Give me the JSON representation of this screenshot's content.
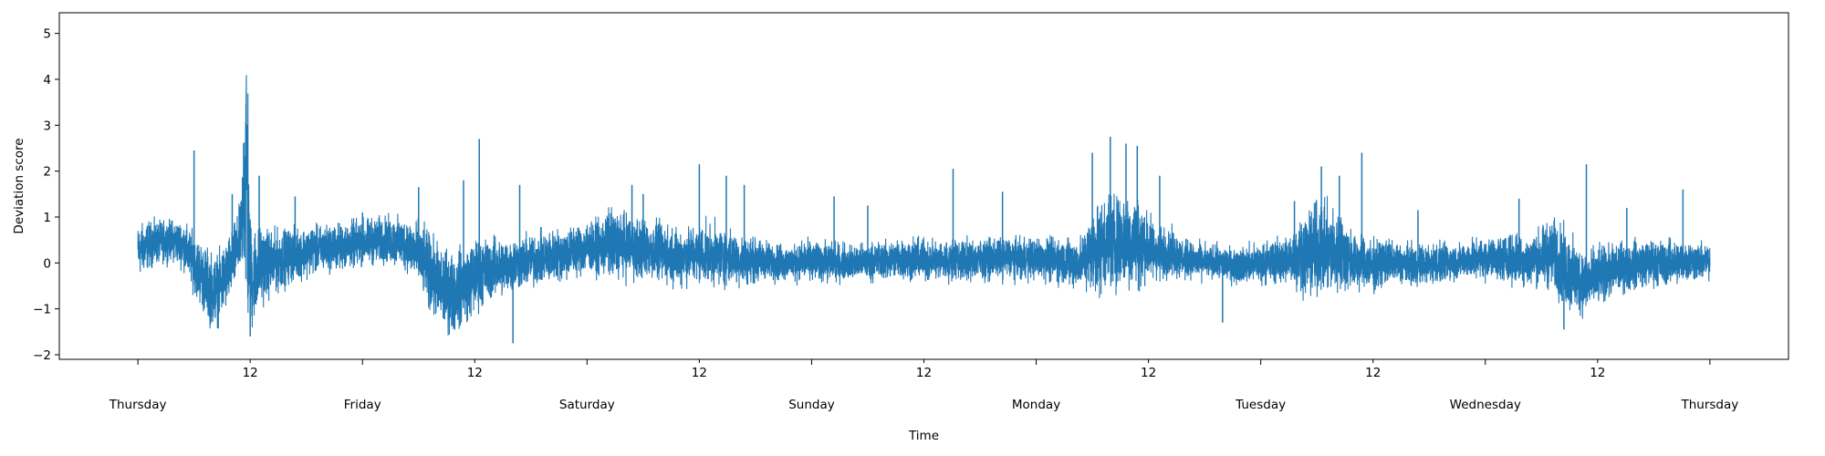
{
  "chart_data": {
    "type": "line",
    "title": "",
    "xlabel": "Time",
    "ylabel": "Deviation score",
    "xlim": [
      -0.35,
      7.35
    ],
    "ylim": [
      -2.1,
      5.45
    ],
    "grid": false,
    "legend": "none",
    "colors": {
      "line": "#1f77b4",
      "axis": "#000000",
      "background": "#ffffff"
    },
    "y_ticks": [
      {
        "value": -2,
        "label": "−2"
      },
      {
        "value": -1,
        "label": "−1"
      },
      {
        "value": 0,
        "label": "0"
      },
      {
        "value": 1,
        "label": "1"
      },
      {
        "value": 2,
        "label": "2"
      },
      {
        "value": 3,
        "label": "3"
      },
      {
        "value": 4,
        "label": "4"
      },
      {
        "value": 5,
        "label": "5"
      }
    ],
    "x_minor_ticks": [
      {
        "value": 0.5,
        "label": "12"
      },
      {
        "value": 1.5,
        "label": "12"
      },
      {
        "value": 2.5,
        "label": "12"
      },
      {
        "value": 3.5,
        "label": "12"
      },
      {
        "value": 4.5,
        "label": "12"
      },
      {
        "value": 5.5,
        "label": "12"
      },
      {
        "value": 6.5,
        "label": "12"
      }
    ],
    "x_major_ticks": [
      {
        "value": 0,
        "label": "Thursday"
      },
      {
        "value": 1,
        "label": "Friday"
      },
      {
        "value": 2,
        "label": "Saturday"
      },
      {
        "value": 3,
        "label": "Sunday"
      },
      {
        "value": 4,
        "label": "Monday"
      },
      {
        "value": 5,
        "label": "Tuesday"
      },
      {
        "value": 6,
        "label": "Wednesday"
      },
      {
        "value": 7,
        "label": "Thursday"
      }
    ],
    "series": [
      {
        "x": [
          0.0,
          0.05,
          0.1,
          0.15,
          0.2,
          0.25,
          0.3,
          0.33,
          0.36,
          0.39,
          0.42,
          0.44,
          0.46,
          0.47,
          0.48,
          0.485,
          0.49,
          0.495,
          0.5,
          0.51,
          0.52,
          0.55,
          0.6,
          0.65,
          0.7,
          0.8,
          0.9,
          1.0,
          1.1,
          1.2,
          1.25,
          1.3,
          1.35,
          1.4,
          1.45,
          1.5,
          1.55,
          1.6,
          1.7,
          1.8,
          1.9,
          2.0,
          2.05,
          2.1,
          2.12,
          2.15,
          2.2,
          2.3,
          2.4,
          2.5,
          2.6,
          2.7,
          2.8,
          2.9,
          3.0,
          3.2,
          3.4,
          3.6,
          3.8,
          4.0,
          4.1,
          4.2,
          4.25,
          4.3,
          4.35,
          4.4,
          4.45,
          4.5,
          4.55,
          4.6,
          4.65,
          4.7,
          4.8,
          4.9,
          5.0,
          5.1,
          5.2,
          5.25,
          5.3,
          5.35,
          5.4,
          5.45,
          5.5,
          5.55,
          5.6,
          5.7,
          5.8,
          5.9,
          6.0,
          6.1,
          6.2,
          6.3,
          6.35,
          6.4,
          6.45,
          6.5,
          6.55,
          6.6,
          6.7,
          6.8,
          6.9,
          7.0
        ],
        "mean": [
          0.25,
          0.4,
          0.45,
          0.5,
          0.4,
          0.0,
          -0.4,
          -0.6,
          -0.55,
          -0.3,
          0.0,
          0.3,
          0.6,
          1.5,
          2.2,
          2.0,
          1.2,
          0.2,
          -0.1,
          -0.4,
          -0.2,
          -0.05,
          0.0,
          0.1,
          0.2,
          0.3,
          0.35,
          0.45,
          0.5,
          0.4,
          0.2,
          -0.2,
          -0.55,
          -0.65,
          -0.5,
          -0.3,
          -0.15,
          -0.1,
          0.0,
          0.1,
          0.2,
          0.35,
          0.3,
          0.45,
          0.35,
          0.4,
          0.35,
          0.25,
          0.15,
          0.2,
          0.15,
          0.05,
          0.05,
          0.0,
          0.05,
          0.0,
          0.1,
          0.05,
          0.1,
          0.1,
          0.05,
          0.0,
          0.3,
          0.4,
          0.45,
          0.5,
          0.45,
          0.3,
          0.2,
          0.25,
          0.1,
          0.05,
          0.0,
          -0.05,
          0.0,
          0.05,
          0.2,
          0.3,
          0.25,
          0.2,
          0.1,
          0.0,
          -0.1,
          0.05,
          0.0,
          -0.05,
          0.0,
          0.05,
          0.1,
          0.1,
          0.05,
          0.2,
          -0.1,
          -0.35,
          -0.4,
          -0.3,
          -0.2,
          -0.1,
          0.0,
          0.0,
          0.05,
          0.0
        ],
        "amp": [
          0.45,
          0.4,
          0.35,
          0.35,
          0.4,
          0.5,
          0.6,
          0.65,
          0.6,
          0.6,
          0.55,
          0.55,
          0.6,
          1.4,
          2.6,
          2.8,
          2.5,
          1.0,
          0.9,
          0.9,
          0.8,
          0.65,
          0.55,
          0.5,
          0.45,
          0.4,
          0.4,
          0.4,
          0.4,
          0.45,
          0.55,
          0.65,
          0.7,
          0.7,
          0.65,
          0.65,
          0.55,
          0.5,
          0.45,
          0.45,
          0.45,
          0.45,
          0.45,
          0.6,
          0.65,
          0.55,
          0.55,
          0.5,
          0.5,
          0.5,
          0.5,
          0.4,
          0.35,
          0.3,
          0.35,
          0.3,
          0.35,
          0.35,
          0.35,
          0.35,
          0.4,
          0.45,
          0.7,
          0.85,
          0.85,
          0.85,
          0.8,
          0.6,
          0.45,
          0.4,
          0.35,
          0.3,
          0.3,
          0.3,
          0.35,
          0.4,
          0.65,
          0.8,
          0.75,
          0.7,
          0.55,
          0.45,
          0.45,
          0.4,
          0.35,
          0.35,
          0.35,
          0.3,
          0.35,
          0.4,
          0.45,
          0.6,
          0.7,
          0.65,
          0.55,
          0.5,
          0.45,
          0.45,
          0.4,
          0.4,
          0.35,
          0.3
        ]
      }
    ],
    "spikes": [
      {
        "x": 0.25,
        "y": 2.45
      },
      {
        "x": 0.42,
        "y": 1.5
      },
      {
        "x": 0.5,
        "y": -1.6
      },
      {
        "x": 0.54,
        "y": 1.9
      },
      {
        "x": 0.7,
        "y": 1.45
      },
      {
        "x": 1.0,
        "y": 1.1
      },
      {
        "x": 1.25,
        "y": 1.65
      },
      {
        "x": 1.45,
        "y": 1.8
      },
      {
        "x": 1.52,
        "y": 2.7
      },
      {
        "x": 1.7,
        "y": 1.7
      },
      {
        "x": 1.67,
        "y": -1.75
      },
      {
        "x": 2.2,
        "y": 1.7
      },
      {
        "x": 2.25,
        "y": 1.5
      },
      {
        "x": 2.5,
        "y": 2.15
      },
      {
        "x": 2.62,
        "y": 1.9
      },
      {
        "x": 2.7,
        "y": 1.7
      },
      {
        "x": 3.1,
        "y": 1.45
      },
      {
        "x": 3.25,
        "y": 1.25
      },
      {
        "x": 3.63,
        "y": 2.05
      },
      {
        "x": 3.85,
        "y": 1.55
      },
      {
        "x": 4.25,
        "y": 2.4
      },
      {
        "x": 4.33,
        "y": 2.75
      },
      {
        "x": 4.4,
        "y": 2.6
      },
      {
        "x": 4.45,
        "y": 2.55
      },
      {
        "x": 4.55,
        "y": 1.9
      },
      {
        "x": 4.83,
        "y": -1.3
      },
      {
        "x": 5.15,
        "y": 1.35
      },
      {
        "x": 5.27,
        "y": 2.1
      },
      {
        "x": 5.35,
        "y": 1.9
      },
      {
        "x": 5.45,
        "y": 2.4
      },
      {
        "x": 5.7,
        "y": 1.15
      },
      {
        "x": 6.15,
        "y": 1.4
      },
      {
        "x": 6.35,
        "y": -1.45
      },
      {
        "x": 6.45,
        "y": 2.15
      },
      {
        "x": 6.63,
        "y": 1.2
      },
      {
        "x": 6.88,
        "y": 1.6
      }
    ]
  }
}
